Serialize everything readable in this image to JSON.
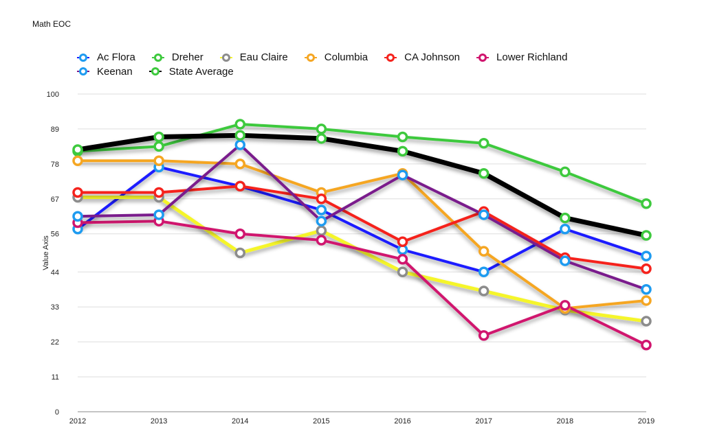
{
  "chart_data": {
    "type": "line",
    "title": "Math EOC",
    "xlabel": "",
    "ylabel": "Value Axis",
    "x": [
      "2012",
      "2013",
      "2014",
      "2015",
      "2016",
      "2017",
      "2018",
      "2019"
    ],
    "yticks": [
      "0",
      "11",
      "22",
      "33",
      "44",
      "56",
      "67",
      "78",
      "89",
      "100"
    ],
    "ylim": [
      0,
      100
    ],
    "grid": true,
    "legend_position": "top-left",
    "series": [
      {
        "name": "Ac Flora",
        "line_color": "#1a1aff",
        "marker_color": "#1e9bf0",
        "values": [
          57.5,
          77,
          71,
          63.5,
          51,
          44,
          57.5,
          49
        ]
      },
      {
        "name": "Dreher",
        "line_color": "#3ec93e",
        "marker_color": "#3ec93e",
        "values": [
          82,
          83.5,
          90.5,
          89,
          86.5,
          84.5,
          75.5,
          65.5
        ]
      },
      {
        "name": "Eau Claire",
        "line_color": "#f5f52a",
        "marker_color": "#8c8c8c",
        "values": [
          67.5,
          67.5,
          50,
          57,
          44,
          38,
          32,
          28.5
        ]
      },
      {
        "name": "Columbia",
        "line_color": "#f5a623",
        "marker_color": "#f5a623",
        "values": [
          79,
          79,
          78,
          69,
          75,
          50.5,
          32.5,
          35
        ]
      },
      {
        "name": "CA Johnson",
        "line_color": "#f5231d",
        "marker_color": "#f5231d",
        "values": [
          69,
          69,
          71,
          67,
          53.5,
          63,
          48.5,
          45
        ]
      },
      {
        "name": "Lower Richland",
        "line_color": "#d0156e",
        "marker_color": "#d0156e",
        "values": [
          59.5,
          60,
          56,
          54,
          48,
          24,
          33.5,
          21
        ]
      },
      {
        "name": "Keenan",
        "line_color": "#7a1a8c",
        "marker_color": "#1e9bf0",
        "values": [
          61.5,
          62,
          84,
          60,
          74.5,
          62,
          47.5,
          38.5
        ]
      },
      {
        "name": "State Average",
        "line_color": "#000000",
        "marker_color": "#3ec93e",
        "values": [
          82.5,
          86.5,
          87,
          86,
          82,
          75,
          61,
          55.5
        ]
      }
    ]
  }
}
